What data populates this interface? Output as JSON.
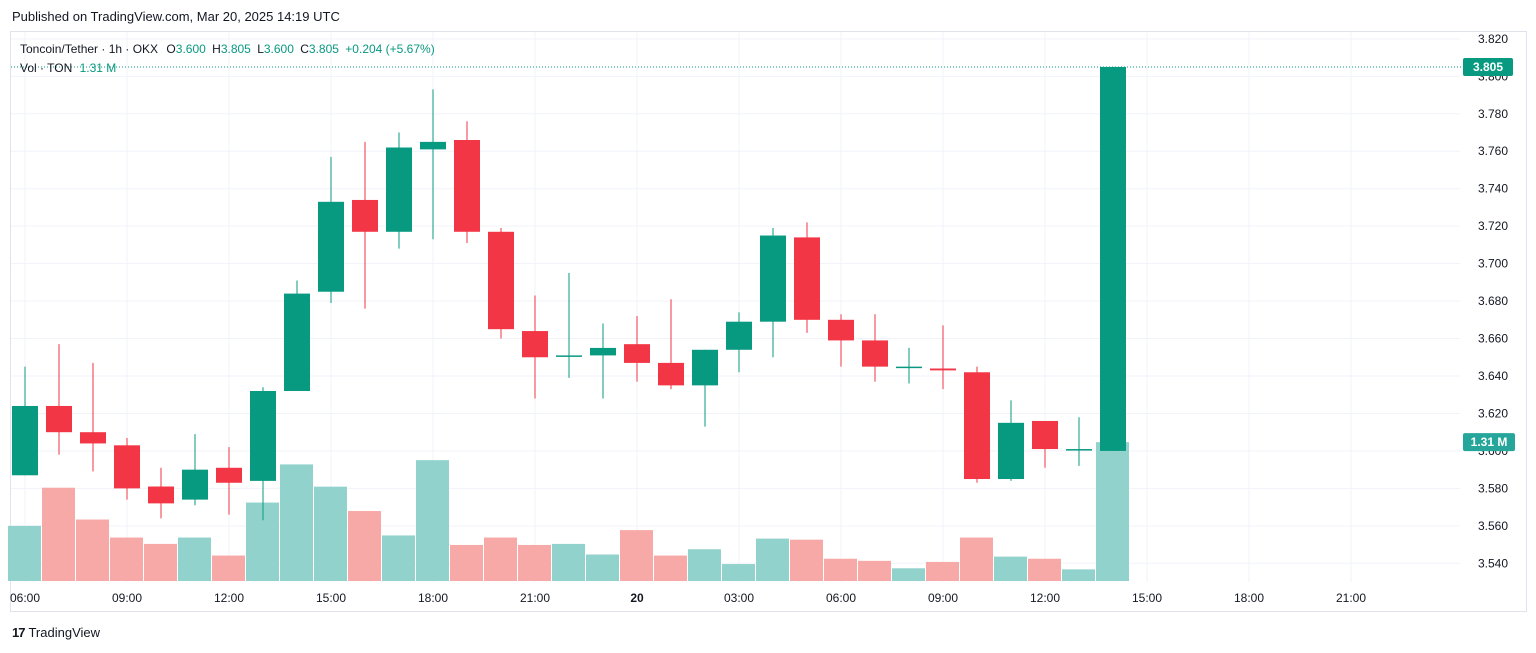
{
  "header": {
    "published": "Published on TradingView.com, Mar 20, 2025 14:19 UTC"
  },
  "legend": {
    "symbol": "Toncoin/Tether · 1h · OKX",
    "o_label": "O",
    "o_value": "3.600",
    "h_label": "H",
    "h_value": "3.805",
    "l_label": "L",
    "l_value": "3.600",
    "c_label": "C",
    "c_value": "3.805",
    "change": "+0.204 (+5.67%)",
    "vol_label": "Vol · TON",
    "vol_value": "1.31 M"
  },
  "footer": {
    "brand": "TradingView",
    "brand_mark": "17"
  },
  "colors": {
    "up": "#089981",
    "down": "#f23645",
    "vol_up": "#92d2cc",
    "vol_down": "#f7a9a7"
  },
  "chart_data": {
    "type": "candlestick",
    "title": "Toncoin/Tether · 1h · OKX",
    "ylim": [
      3.535,
      3.825
    ],
    "y_ticks": [
      "3.820",
      "3.800",
      "3.780",
      "3.760",
      "3.740",
      "3.720",
      "3.700",
      "3.680",
      "3.660",
      "3.640",
      "3.620",
      "3.600",
      "3.580",
      "3.560",
      "3.540"
    ],
    "x_ticks": [
      {
        "label": "06:00",
        "index": 0,
        "bold": false
      },
      {
        "label": "09:00",
        "index": 3,
        "bold": false
      },
      {
        "label": "12:00",
        "index": 6,
        "bold": false
      },
      {
        "label": "15:00",
        "index": 9,
        "bold": false
      },
      {
        "label": "18:00",
        "index": 12,
        "bold": false
      },
      {
        "label": "21:00",
        "index": 15,
        "bold": false
      },
      {
        "label": "20",
        "index": 18,
        "bold": true
      },
      {
        "label": "03:00",
        "index": 21,
        "bold": false
      },
      {
        "label": "06:00",
        "index": 24,
        "bold": false
      },
      {
        "label": "09:00",
        "index": 27,
        "bold": false
      },
      {
        "label": "12:00",
        "index": 30,
        "bold": false
      },
      {
        "label": "15:00",
        "index": 33,
        "bold": false
      },
      {
        "label": "18:00",
        "index": 36,
        "bold": false
      },
      {
        "label": "21:00",
        "index": 39,
        "bold": false
      }
    ],
    "price_label": "3.805",
    "price_value": 3.805,
    "volume_label": "1.31 M",
    "candles": [
      {
        "o": 3.587,
        "h": 3.645,
        "l": 3.587,
        "c": 3.624,
        "v": 0.52
      },
      {
        "o": 3.624,
        "h": 3.657,
        "l": 3.598,
        "c": 3.61,
        "v": 0.88
      },
      {
        "o": 3.61,
        "h": 3.647,
        "l": 3.589,
        "c": 3.604,
        "v": 0.58
      },
      {
        "o": 3.603,
        "h": 3.607,
        "l": 3.574,
        "c": 3.58,
        "v": 0.41
      },
      {
        "o": 3.581,
        "h": 3.591,
        "l": 3.564,
        "c": 3.572,
        "v": 0.35
      },
      {
        "o": 3.574,
        "h": 3.609,
        "l": 3.571,
        "c": 3.59,
        "v": 0.41
      },
      {
        "o": 3.591,
        "h": 3.602,
        "l": 3.566,
        "c": 3.583,
        "v": 0.24
      },
      {
        "o": 3.584,
        "h": 3.634,
        "l": 3.563,
        "c": 3.632,
        "v": 0.74
      },
      {
        "o": 3.632,
        "h": 3.691,
        "l": 3.632,
        "c": 3.684,
        "v": 1.1
      },
      {
        "o": 3.685,
        "h": 3.757,
        "l": 3.679,
        "c": 3.733,
        "v": 0.89
      },
      {
        "o": 3.734,
        "h": 3.765,
        "l": 3.676,
        "c": 3.717,
        "v": 0.66
      },
      {
        "o": 3.717,
        "h": 3.77,
        "l": 3.708,
        "c": 3.762,
        "v": 0.43
      },
      {
        "o": 3.761,
        "h": 3.793,
        "l": 3.713,
        "c": 3.765,
        "v": 1.14
      },
      {
        "o": 3.766,
        "h": 3.776,
        "l": 3.711,
        "c": 3.717,
        "v": 0.34
      },
      {
        "o": 3.717,
        "h": 3.719,
        "l": 3.66,
        "c": 3.665,
        "v": 0.41
      },
      {
        "o": 3.664,
        "h": 3.683,
        "l": 3.628,
        "c": 3.65,
        "v": 0.34
      },
      {
        "o": 3.651,
        "h": 3.695,
        "l": 3.639,
        "c": 3.651,
        "v": 0.35
      },
      {
        "o": 3.651,
        "h": 3.668,
        "l": 3.628,
        "c": 3.655,
        "v": 0.25
      },
      {
        "o": 3.657,
        "h": 3.672,
        "l": 3.637,
        "c": 3.647,
        "v": 0.48
      },
      {
        "o": 3.647,
        "h": 3.681,
        "l": 3.633,
        "c": 3.635,
        "v": 0.24
      },
      {
        "o": 3.635,
        "h": 3.654,
        "l": 3.613,
        "c": 3.654,
        "v": 0.3
      },
      {
        "o": 3.654,
        "h": 3.674,
        "l": 3.642,
        "c": 3.669,
        "v": 0.16
      },
      {
        "o": 3.669,
        "h": 3.719,
        "l": 3.65,
        "c": 3.715,
        "v": 0.4
      },
      {
        "o": 3.714,
        "h": 3.722,
        "l": 3.663,
        "c": 3.67,
        "v": 0.39
      },
      {
        "o": 3.67,
        "h": 3.673,
        "l": 3.645,
        "c": 3.659,
        "v": 0.21
      },
      {
        "o": 3.659,
        "h": 3.673,
        "l": 3.637,
        "c": 3.645,
        "v": 0.19
      },
      {
        "o": 3.645,
        "h": 3.655,
        "l": 3.636,
        "c": 3.645,
        "v": 0.12
      },
      {
        "o": 3.644,
        "h": 3.667,
        "l": 3.633,
        "c": 3.643,
        "v": 0.18
      },
      {
        "o": 3.642,
        "h": 3.645,
        "l": 3.583,
        "c": 3.585,
        "v": 0.41
      },
      {
        "o": 3.585,
        "h": 3.627,
        "l": 3.584,
        "c": 3.615,
        "v": 0.23
      },
      {
        "o": 3.616,
        "h": 3.616,
        "l": 3.591,
        "c": 3.601,
        "v": 0.21
      },
      {
        "o": 3.601,
        "h": 3.618,
        "l": 3.592,
        "c": 3.601,
        "v": 0.11
      },
      {
        "o": 3.6,
        "h": 3.805,
        "l": 3.6,
        "c": 3.805,
        "v": 1.31
      }
    ]
  }
}
